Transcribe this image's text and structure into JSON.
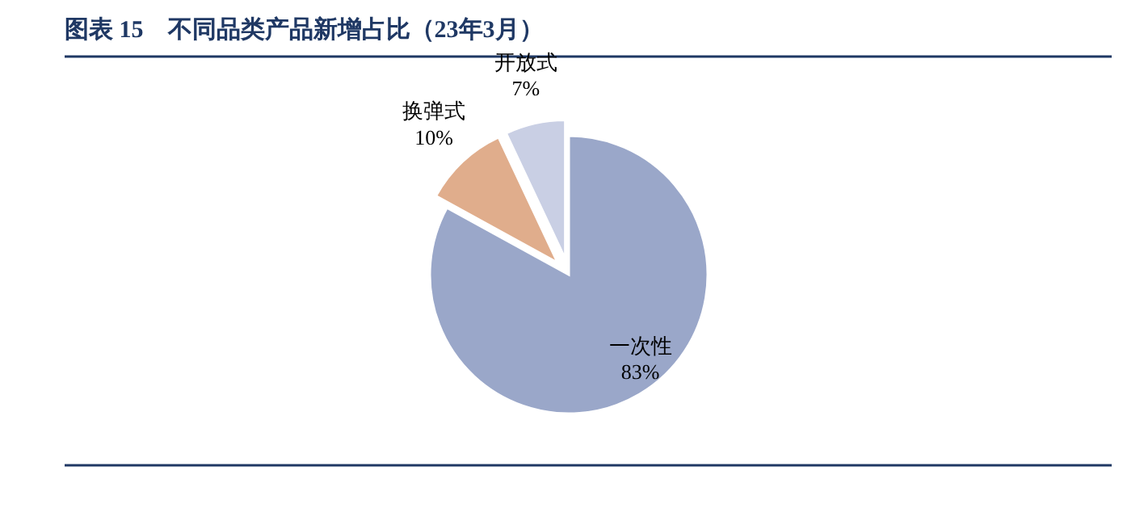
{
  "chart_data": {
    "type": "pie",
    "title": "图表 15　不同品类产品新增占比（23年3月）",
    "categories": [
      "一次性",
      "换弹式",
      "开放式"
    ],
    "values": [
      83,
      10,
      7
    ],
    "colors": [
      "#9aa7c9",
      "#e0ad8c",
      "#c9cfe4"
    ],
    "value_labels": [
      "83%",
      "10%",
      "7%"
    ],
    "legend": false
  }
}
